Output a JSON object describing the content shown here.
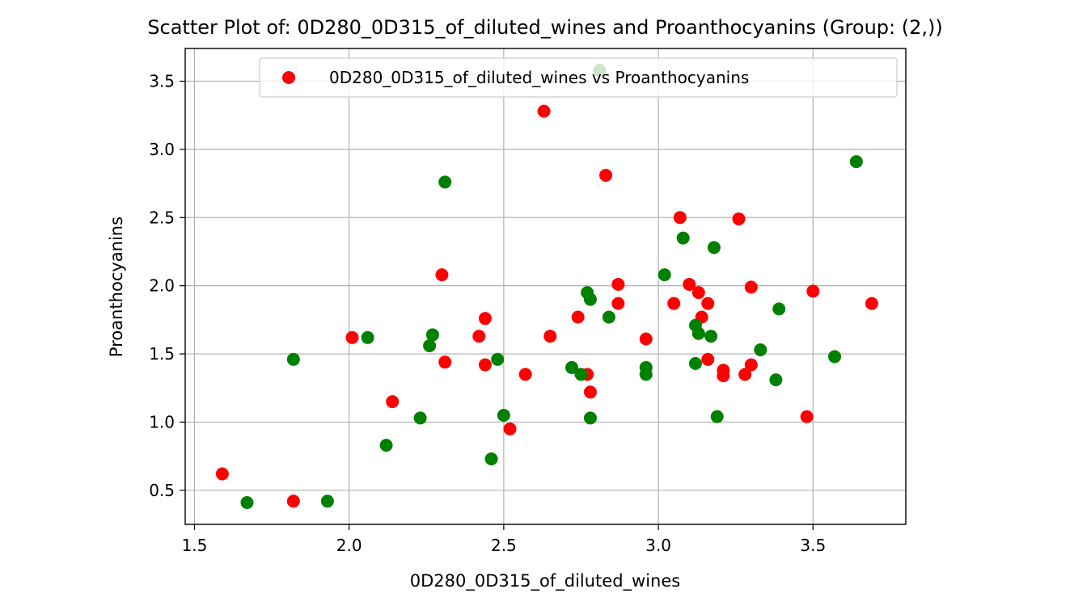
{
  "chart_data": {
    "type": "scatter",
    "title": "Scatter Plot of: 0D280_0D315_of_diluted_wines and Proanthocyanins (Group: (2,))",
    "xlabel": "0D280_0D315_of_diluted_wines",
    "ylabel": "Proanthocyanins",
    "xlim": [
      1.47,
      3.8
    ],
    "ylim": [
      0.25,
      3.74
    ],
    "xticks": [
      1.5,
      2.0,
      2.5,
      3.0,
      3.5
    ],
    "yticks": [
      0.5,
      1.0,
      1.5,
      2.0,
      2.5,
      3.0,
      3.5
    ],
    "xtick_labels": [
      "1.5",
      "2.0",
      "2.5",
      "3.0",
      "3.5"
    ],
    "ytick_labels": [
      "0.5",
      "1.0",
      "1.5",
      "2.0",
      "2.5",
      "3.0",
      "3.5"
    ],
    "grid": true,
    "legend_position": "top-right",
    "legend": [
      "0D280_0D315_of_diluted_wines vs Proanthocyanins"
    ],
    "series": [
      {
        "name": "0D280_0D315_of_diluted_wines vs Proanthocyanins",
        "color": "#ff0000",
        "points": [
          [
            1.59,
            0.62
          ],
          [
            1.82,
            0.42
          ],
          [
            2.01,
            1.62
          ],
          [
            2.14,
            1.15
          ],
          [
            2.3,
            2.08
          ],
          [
            2.31,
            1.44
          ],
          [
            2.42,
            1.63
          ],
          [
            2.44,
            1.76
          ],
          [
            2.44,
            1.42
          ],
          [
            2.52,
            0.95
          ],
          [
            2.57,
            1.35
          ],
          [
            2.63,
            3.28
          ],
          [
            2.65,
            1.63
          ],
          [
            2.74,
            1.77
          ],
          [
            2.77,
            1.35
          ],
          [
            2.78,
            1.22
          ],
          [
            2.83,
            2.81
          ],
          [
            2.87,
            2.01
          ],
          [
            2.87,
            1.87
          ],
          [
            2.96,
            1.61
          ],
          [
            3.05,
            1.87
          ],
          [
            3.07,
            2.5
          ],
          [
            3.1,
            2.01
          ],
          [
            3.13,
            1.95
          ],
          [
            3.14,
            1.77
          ],
          [
            3.16,
            1.87
          ],
          [
            3.16,
            1.46
          ],
          [
            3.21,
            1.38
          ],
          [
            3.21,
            1.34
          ],
          [
            3.26,
            2.49
          ],
          [
            3.28,
            1.35
          ],
          [
            3.3,
            1.99
          ],
          [
            3.3,
            1.42
          ],
          [
            3.48,
            1.04
          ],
          [
            3.5,
            1.96
          ],
          [
            3.69,
            1.87
          ]
        ]
      },
      {
        "color": "#008000",
        "points": [
          [
            1.67,
            0.41
          ],
          [
            1.82,
            1.46
          ],
          [
            1.93,
            0.42
          ],
          [
            2.06,
            1.62
          ],
          [
            2.12,
            0.83
          ],
          [
            2.23,
            1.03
          ],
          [
            2.26,
            1.56
          ],
          [
            2.27,
            1.64
          ],
          [
            2.31,
            2.76
          ],
          [
            2.46,
            0.73
          ],
          [
            2.48,
            1.46
          ],
          [
            2.5,
            1.05
          ],
          [
            2.72,
            1.4
          ],
          [
            2.75,
            1.35
          ],
          [
            2.77,
            1.95
          ],
          [
            2.78,
            1.9
          ],
          [
            2.78,
            1.03
          ],
          [
            2.81,
            3.58
          ],
          [
            2.84,
            1.77
          ],
          [
            2.96,
            1.4
          ],
          [
            2.96,
            1.35
          ],
          [
            3.02,
            2.08
          ],
          [
            3.08,
            2.35
          ],
          [
            3.12,
            1.71
          ],
          [
            3.12,
            1.43
          ],
          [
            3.13,
            1.65
          ],
          [
            3.17,
            1.63
          ],
          [
            3.18,
            2.28
          ],
          [
            3.19,
            1.04
          ],
          [
            3.33,
            1.53
          ],
          [
            3.38,
            1.31
          ],
          [
            3.39,
            1.83
          ],
          [
            3.57,
            1.48
          ],
          [
            3.64,
            2.91
          ]
        ]
      }
    ]
  }
}
